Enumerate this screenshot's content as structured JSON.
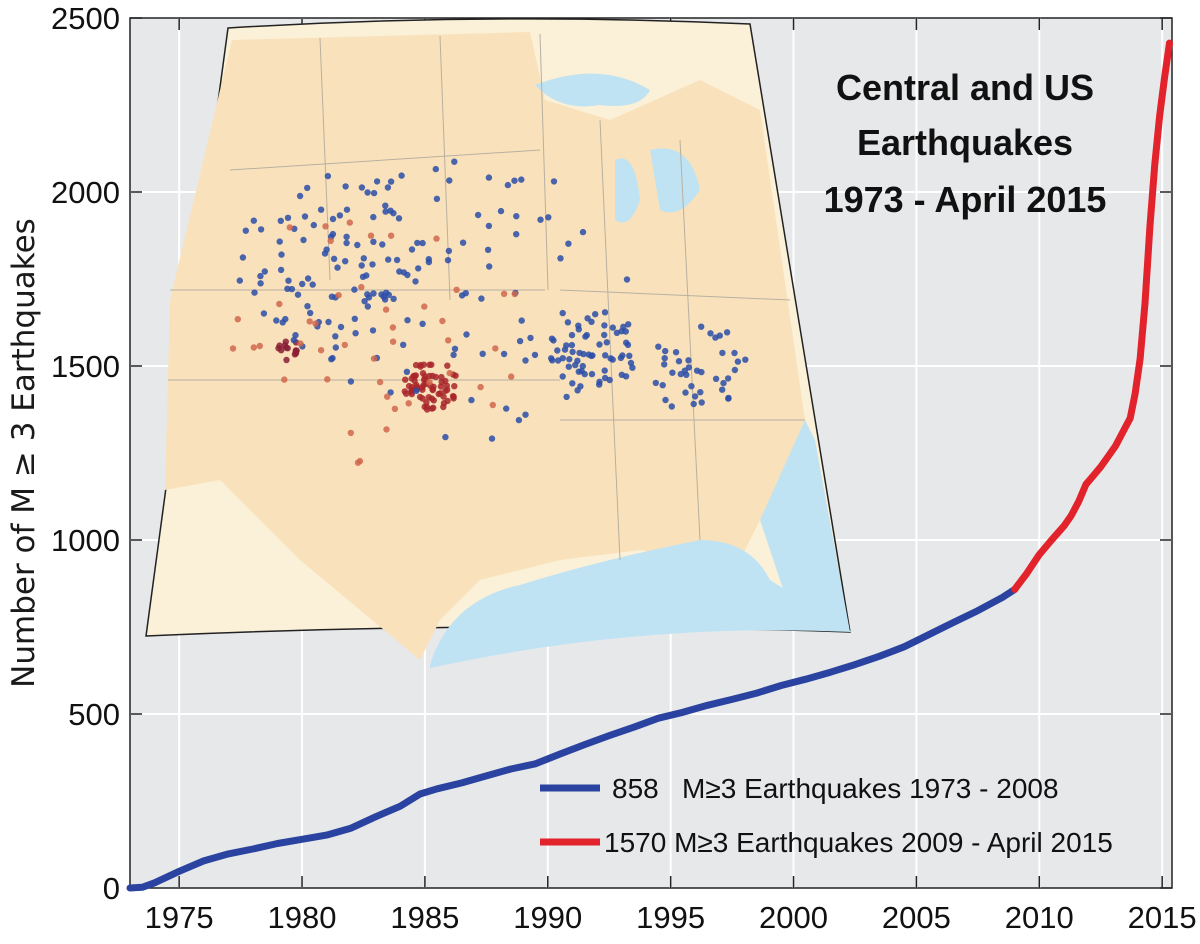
{
  "chart_data": {
    "type": "line",
    "title_lines": [
      "Central and US",
      "Earthquakes",
      "1973 - April 2015"
    ],
    "xlabel": "",
    "ylabel": "Number of M ≥ 3 Earthquakes",
    "xlim": [
      1973,
      2015.4
    ],
    "ylim": [
      0,
      2500
    ],
    "xticks": [
      1975,
      1980,
      1985,
      1990,
      1995,
      2000,
      2005,
      2010,
      2015
    ],
    "yticks": [
      0,
      500,
      1000,
      1500,
      2000,
      2500
    ],
    "grid": true,
    "legend_position": "bottom-right",
    "series": [
      {
        "name": "858   M≥3 Earthquakes 1973 - 2008",
        "color": "#2b43a0",
        "x": [
          1973.0,
          1973.5,
          1974.0,
          1975.0,
          1976.0,
          1977.0,
          1978.0,
          1979.0,
          1980.0,
          1981.0,
          1982.0,
          1983.0,
          1984.0,
          1984.8,
          1985.5,
          1986.5,
          1987.5,
          1988.5,
          1989.5,
          1990.5,
          1991.5,
          1992.5,
          1993.5,
          1994.5,
          1995.5,
          1996.5,
          1997.5,
          1998.5,
          1999.5,
          2000.5,
          2001.5,
          2002.5,
          2003.5,
          2004.5,
          2005.5,
          2006.5,
          2007.5,
          2008.5,
          2009.0
        ],
        "y": [
          0,
          2,
          15,
          48,
          78,
          98,
          112,
          128,
          140,
          152,
          172,
          205,
          235,
          270,
          285,
          302,
          322,
          342,
          357,
          385,
          412,
          438,
          462,
          488,
          505,
          525,
          542,
          560,
          582,
          600,
          620,
          642,
          666,
          693,
          728,
          763,
          797,
          835,
          858
        ]
      },
      {
        "name": "1570 M≥3 Earthquakes 2009 - April 2015",
        "color": "#e3232b",
        "x": [
          2009.0,
          2009.5,
          2010.0,
          2010.5,
          2011.0,
          2011.3,
          2011.6,
          2011.9,
          2012.2,
          2012.5,
          2012.8,
          2013.1,
          2013.4,
          2013.7,
          2013.9,
          2014.1,
          2014.3,
          2014.5,
          2014.7,
          2014.9,
          2015.1,
          2015.3
        ],
        "y": [
          858,
          905,
          958,
          1000,
          1040,
          1070,
          1110,
          1160,
          1185,
          1210,
          1240,
          1270,
          1310,
          1350,
          1420,
          1520,
          1680,
          1900,
          2080,
          2220,
          2330,
          2428
        ]
      }
    ]
  }
}
